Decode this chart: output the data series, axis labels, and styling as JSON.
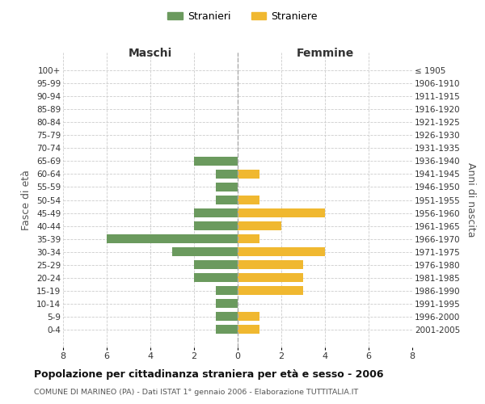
{
  "age_groups": [
    "100+",
    "95-99",
    "90-94",
    "85-89",
    "80-84",
    "75-79",
    "70-74",
    "65-69",
    "60-64",
    "55-59",
    "50-54",
    "45-49",
    "40-44",
    "35-39",
    "30-34",
    "25-29",
    "20-24",
    "15-19",
    "10-14",
    "5-9",
    "0-4"
  ],
  "birth_years": [
    "≤ 1905",
    "1906-1910",
    "1911-1915",
    "1916-1920",
    "1921-1925",
    "1926-1930",
    "1931-1935",
    "1936-1940",
    "1941-1945",
    "1946-1950",
    "1951-1955",
    "1956-1960",
    "1961-1965",
    "1966-1970",
    "1971-1975",
    "1976-1980",
    "1981-1985",
    "1986-1990",
    "1991-1995",
    "1996-2000",
    "2001-2005"
  ],
  "maschi": [
    0,
    0,
    0,
    0,
    0,
    0,
    0,
    2,
    1,
    1,
    1,
    2,
    2,
    6,
    3,
    2,
    2,
    1,
    1,
    1,
    1
  ],
  "femmine": [
    0,
    0,
    0,
    0,
    0,
    0,
    0,
    0,
    1,
    0,
    1,
    4,
    2,
    1,
    4,
    3,
    3,
    3,
    0,
    1,
    1
  ],
  "color_maschi": "#6b9a5e",
  "color_femmine": "#f0b830",
  "title": "Popolazione per cittadinanza straniera per età e sesso - 2006",
  "subtitle": "COMUNE DI MARINEO (PA) - Dati ISTAT 1° gennaio 2006 - Elaborazione TUTTITALIA.IT",
  "xlabel_maschi": "Maschi",
  "xlabel_femmine": "Femmine",
  "ylabel_left": "Fasce di età",
  "ylabel_right": "Anni di nascita",
  "legend_maschi": "Stranieri",
  "legend_femmine": "Straniere",
  "xlim": 8,
  "background_color": "#ffffff",
  "grid_color": "#cccccc"
}
